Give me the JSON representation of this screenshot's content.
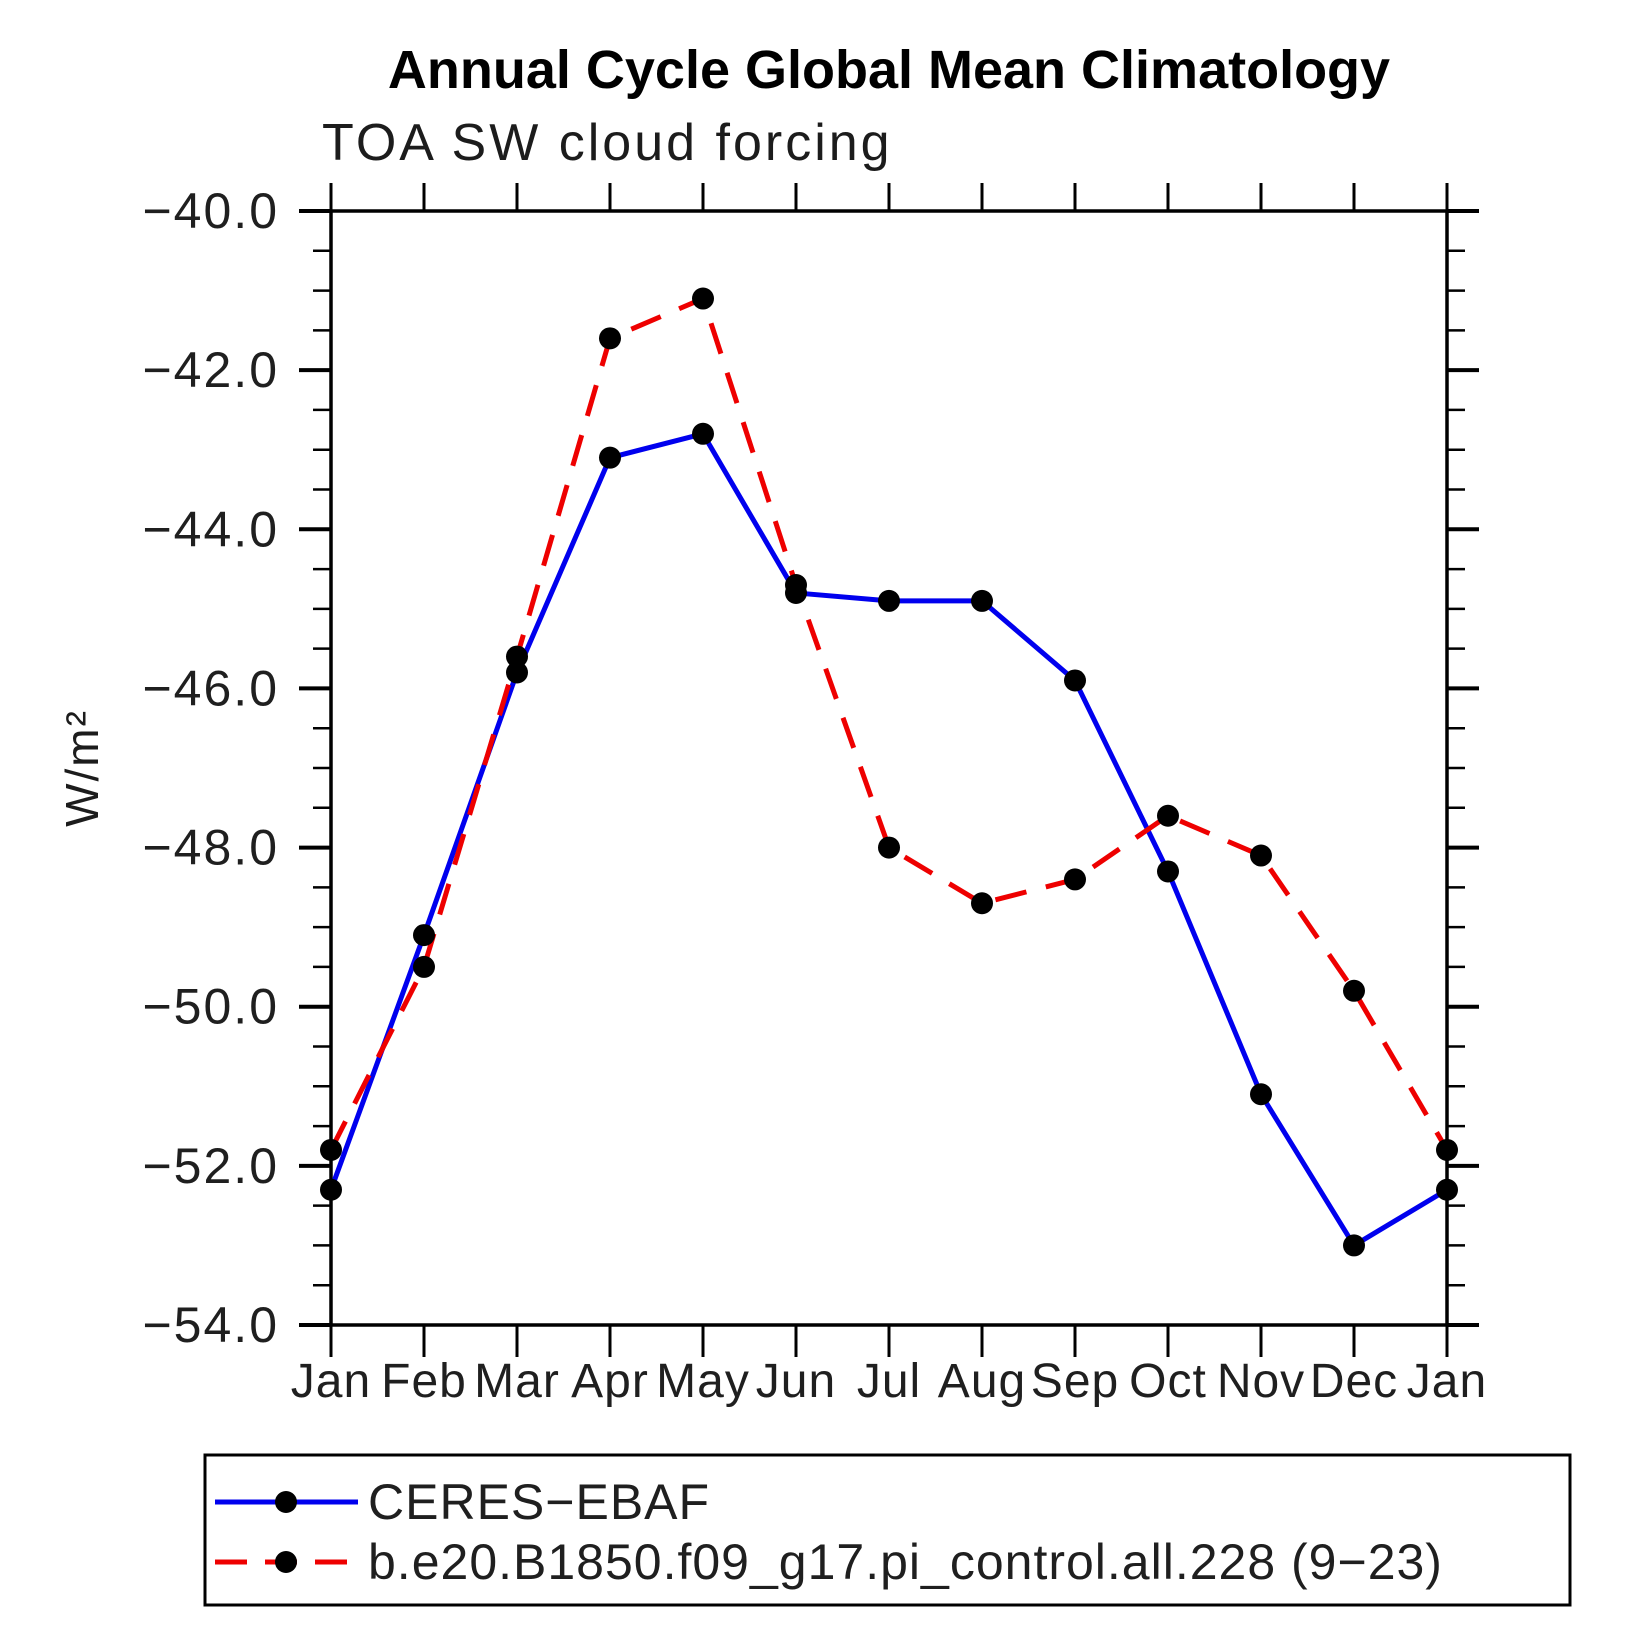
{
  "page": {
    "title": "Annual Cycle Global Mean Climatology",
    "subtitle": "TOA SW cloud forcing"
  },
  "chart_data": {
    "type": "line",
    "title": "Annual Cycle Global Mean Climatology",
    "subtitle": "TOA SW cloud forcing",
    "ylabel": "W/m²",
    "xlabel": "",
    "ylim": [
      -54.0,
      -40.0
    ],
    "ytick_major_interval": 2.0,
    "ytick_minor_interval": 0.5,
    "ytick_values": [
      -40.0,
      -42.0,
      -44.0,
      -46.0,
      -48.0,
      -50.0,
      -52.0,
      -54.0
    ],
    "ytick_labels": [
      "−40.0",
      "−42.0",
      "−44.0",
      "−46.0",
      "−48.0",
      "−50.0",
      "−52.0",
      "−54.0"
    ],
    "categories": [
      "Jan",
      "Feb",
      "Mar",
      "Apr",
      "May",
      "Jun",
      "Jul",
      "Aug",
      "Sep",
      "Oct",
      "Nov",
      "Dec",
      "Jan"
    ],
    "grid": false,
    "legend_position": "bottom",
    "series": [
      {
        "name": "CERES−EBAF",
        "color": "#0000ee",
        "line_style": "solid",
        "marker": "circle",
        "marker_color": "#000000",
        "values": [
          -52.3,
          -49.1,
          -45.8,
          -43.1,
          -42.8,
          -44.8,
          -44.9,
          -44.9,
          -45.9,
          -48.3,
          -51.1,
          -53.0,
          -52.3
        ]
      },
      {
        "name": "b.e20.B1850.f09_g17.pi_control.all.228 (9−23)",
        "color": "#ee0000",
        "line_style": "dashed",
        "marker": "circle",
        "marker_color": "#000000",
        "values": [
          -51.8,
          -49.5,
          -45.6,
          -41.6,
          -41.1,
          -44.7,
          -48.0,
          -48.7,
          -48.4,
          -47.6,
          -48.1,
          -49.8,
          -51.8
        ]
      }
    ]
  },
  "colors": {
    "axis": "#000000",
    "background": "#ffffff",
    "obs_line": "#0000ee",
    "model_line": "#ee0000",
    "marker": "#000000"
  }
}
